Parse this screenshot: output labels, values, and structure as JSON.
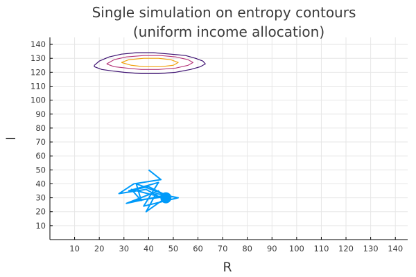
{
  "chart_data": {
    "type": "line",
    "title_lines": [
      "Single simulation on entropy contours",
      "(uniform income allocation)"
    ],
    "xlabel": "R",
    "ylabel": "I",
    "xlim": [
      0,
      145
    ],
    "ylim": [
      0,
      145
    ],
    "x_ticks": [
      10,
      20,
      30,
      40,
      50,
      60,
      70,
      80,
      90,
      100,
      110,
      120,
      130,
      140
    ],
    "y_ticks": [
      10,
      20,
      30,
      40,
      50,
      60,
      70,
      80,
      90,
      100,
      110,
      120,
      130,
      140
    ],
    "grid": true,
    "legend": "none",
    "colors": {
      "trajectory": "#009af9",
      "contour_outer": "#3b0f70",
      "contour_mid": "#b63679",
      "contour_inner": "#f1a10e"
    },
    "contours": [
      {
        "level": "outer",
        "points": [
          [
            18,
            125
          ],
          [
            20,
            128
          ],
          [
            24,
            131
          ],
          [
            29,
            133
          ],
          [
            35,
            134
          ],
          [
            42,
            134
          ],
          [
            49,
            133
          ],
          [
            55,
            132
          ],
          [
            59,
            130
          ],
          [
            62,
            128
          ],
          [
            63,
            126
          ],
          [
            61,
            124
          ],
          [
            57,
            122
          ],
          [
            51,
            120
          ],
          [
            44,
            119
          ],
          [
            37,
            119
          ],
          [
            30,
            120
          ],
          [
            25,
            121
          ],
          [
            21,
            122
          ],
          [
            18,
            124
          ],
          [
            18,
            125
          ]
        ]
      },
      {
        "level": "mid",
        "points": [
          [
            23,
            126
          ],
          [
            26,
            129
          ],
          [
            31,
            131
          ],
          [
            38,
            132
          ],
          [
            45,
            132
          ],
          [
            51,
            131
          ],
          [
            56,
            129
          ],
          [
            58,
            127
          ],
          [
            56,
            125
          ],
          [
            51,
            123
          ],
          [
            44,
            122
          ],
          [
            37,
            122
          ],
          [
            31,
            123
          ],
          [
            26,
            124
          ],
          [
            23,
            126
          ]
        ]
      },
      {
        "level": "inner",
        "points": [
          [
            29,
            127
          ],
          [
            32,
            129
          ],
          [
            38,
            130
          ],
          [
            44,
            130
          ],
          [
            49,
            129
          ],
          [
            52,
            127
          ],
          [
            50,
            125
          ],
          [
            45,
            124
          ],
          [
            38,
            124
          ],
          [
            33,
            125
          ],
          [
            29,
            127
          ]
        ]
      }
    ],
    "trajectory": {
      "x": [
        40,
        45,
        34,
        28,
        39,
        44,
        33,
        37,
        35,
        47,
        31,
        44,
        34,
        48,
        40,
        32,
        44,
        38,
        52,
        43,
        39,
        47
      ],
      "y": [
        50,
        43,
        40,
        33,
        36,
        31,
        36,
        28,
        40,
        32,
        26,
        35,
        28,
        31,
        38,
        35,
        41,
        24,
        30,
        33,
        20,
        30
      ],
      "end_point": [
        47,
        30
      ]
    }
  }
}
